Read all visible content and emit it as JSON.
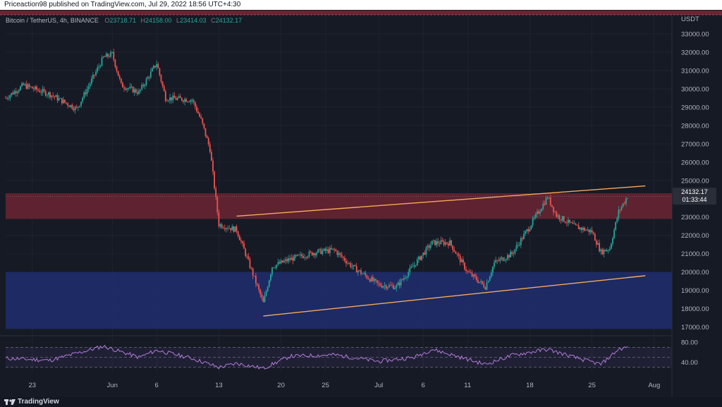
{
  "header": {
    "published_text": "Priceaction98 published on TradingView.com, Jul 29, 2022 18:56 UTC+4:30"
  },
  "legend": {
    "symbol": "Bitcoin / TetherUS, 4h, BINANCE",
    "open_label": "O",
    "open": "23718.71",
    "high_label": "H",
    "high": "24158.00",
    "low_label": "L",
    "low": "23414.03",
    "close_label": "C",
    "close": "24132.17"
  },
  "price_axis": {
    "currency": "USDT",
    "ticks": [
      "33000.00",
      "32000.00",
      "31000.00",
      "30000.00",
      "29000.00",
      "28000.00",
      "27000.00",
      "26000.00",
      "25000.00",
      "24000.00",
      "23000.00",
      "22000.00",
      "21000.00",
      "20000.00",
      "19000.00",
      "18000.00",
      "17000.00"
    ]
  },
  "last_price": {
    "price": "24132.17",
    "countdown": "01:33:44"
  },
  "rsi_axis": {
    "ticks": [
      "80.00",
      "40.00"
    ]
  },
  "time_axis": {
    "ticks": [
      "23",
      "Jun",
      "6",
      "13",
      "20",
      "25",
      "Jul",
      "6",
      "11",
      "18",
      "25",
      "Aug"
    ]
  },
  "footer": {
    "brand": "TradingView"
  },
  "colors": {
    "background": "#161a25",
    "up_candle": "#26a69a",
    "down_candle": "#ef5350",
    "resistance_zone": "#6b2532",
    "support_zone": "#1e2e6e",
    "trendline": "#f7a95a",
    "rsi_line": "#b07bd6"
  },
  "chart_data": {
    "type": "candlestick",
    "title": "",
    "y_unit": "USDT",
    "ylim": [
      16600,
      34000
    ],
    "x_range": [
      "May 20",
      "Aug 3"
    ],
    "close_path": [
      {
        "x": "May 20",
        "y": 29500
      },
      {
        "x": "May 22",
        "y": 30200
      },
      {
        "x": "May 25",
        "y": 29700
      },
      {
        "x": "May 28",
        "y": 28900
      },
      {
        "x": "May 31",
        "y": 31700
      },
      {
        "x": "Jun 1",
        "y": 31900
      },
      {
        "x": "Jun 2",
        "y": 30200
      },
      {
        "x": "Jun 4",
        "y": 29800
      },
      {
        "x": "Jun 6",
        "y": 31400
      },
      {
        "x": "Jun 7",
        "y": 29500
      },
      {
        "x": "Jun 10",
        "y": 29400
      },
      {
        "x": "Jun 11",
        "y": 28300
      },
      {
        "x": "Jun 12",
        "y": 26700
      },
      {
        "x": "Jun 13",
        "y": 22600
      },
      {
        "x": "Jun 15",
        "y": 22300
      },
      {
        "x": "Jun 16",
        "y": 21000
      },
      {
        "x": "Jun 18",
        "y": 18300
      },
      {
        "x": "Jun 19",
        "y": 20300
      },
      {
        "x": "Jun 21",
        "y": 20700
      },
      {
        "x": "Jun 24",
        "y": 21100
      },
      {
        "x": "Jun 26",
        "y": 21200
      },
      {
        "x": "Jun 28",
        "y": 20300
      },
      {
        "x": "Jul 1",
        "y": 19300
      },
      {
        "x": "Jul 3",
        "y": 19200
      },
      {
        "x": "Jul 5",
        "y": 20400
      },
      {
        "x": "Jul 7",
        "y": 21600
      },
      {
        "x": "Jul 9",
        "y": 21600
      },
      {
        "x": "Jul 11",
        "y": 20000
      },
      {
        "x": "Jul 13",
        "y": 19200
      },
      {
        "x": "Jul 14",
        "y": 20500
      },
      {
        "x": "Jul 16",
        "y": 21000
      },
      {
        "x": "Jul 18",
        "y": 22500
      },
      {
        "x": "Jul 20",
        "y": 24100
      },
      {
        "x": "Jul 21",
        "y": 23100
      },
      {
        "x": "Jul 23",
        "y": 22500
      },
      {
        "x": "Jul 25",
        "y": 22200
      },
      {
        "x": "Jul 26",
        "y": 21100
      },
      {
        "x": "Jul 27",
        "y": 21300
      },
      {
        "x": "Jul 28",
        "y": 23300
      },
      {
        "x": "Jul 29",
        "y": 24132
      }
    ],
    "zones": [
      {
        "name": "resistance",
        "from": 22900,
        "to": 24300
      },
      {
        "name": "support",
        "from": 16900,
        "to": 20000
      }
    ],
    "channel": {
      "upper": [
        {
          "x": "Jun 15",
          "y": 23050
        },
        {
          "x": "Jul 31",
          "y": 24700
        }
      ],
      "lower": [
        {
          "x": "Jun 18",
          "y": 17600
        },
        {
          "x": "Jul 31",
          "y": 19800
        }
      ]
    },
    "rsi": {
      "ylim": [
        20,
        90
      ],
      "levels": [
        70,
        50,
        30
      ],
      "values": [
        {
          "x": "May 20",
          "y": 48
        },
        {
          "x": "May 25",
          "y": 44
        },
        {
          "x": "May 31",
          "y": 72
        },
        {
          "x": "Jun 4",
          "y": 50
        },
        {
          "x": "Jun 6",
          "y": 64
        },
        {
          "x": "Jun 10",
          "y": 48
        },
        {
          "x": "Jun 13",
          "y": 30
        },
        {
          "x": "Jun 15",
          "y": 38
        },
        {
          "x": "Jun 18",
          "y": 28
        },
        {
          "x": "Jun 21",
          "y": 52
        },
        {
          "x": "Jun 26",
          "y": 55
        },
        {
          "x": "Jul 1",
          "y": 42
        },
        {
          "x": "Jul 5",
          "y": 50
        },
        {
          "x": "Jul 7",
          "y": 66
        },
        {
          "x": "Jul 13",
          "y": 36
        },
        {
          "x": "Jul 16",
          "y": 54
        },
        {
          "x": "Jul 20",
          "y": 66
        },
        {
          "x": "Jul 23",
          "y": 50
        },
        {
          "x": "Jul 26",
          "y": 36
        },
        {
          "x": "Jul 28",
          "y": 66
        },
        {
          "x": "Jul 29",
          "y": 70
        }
      ]
    }
  }
}
